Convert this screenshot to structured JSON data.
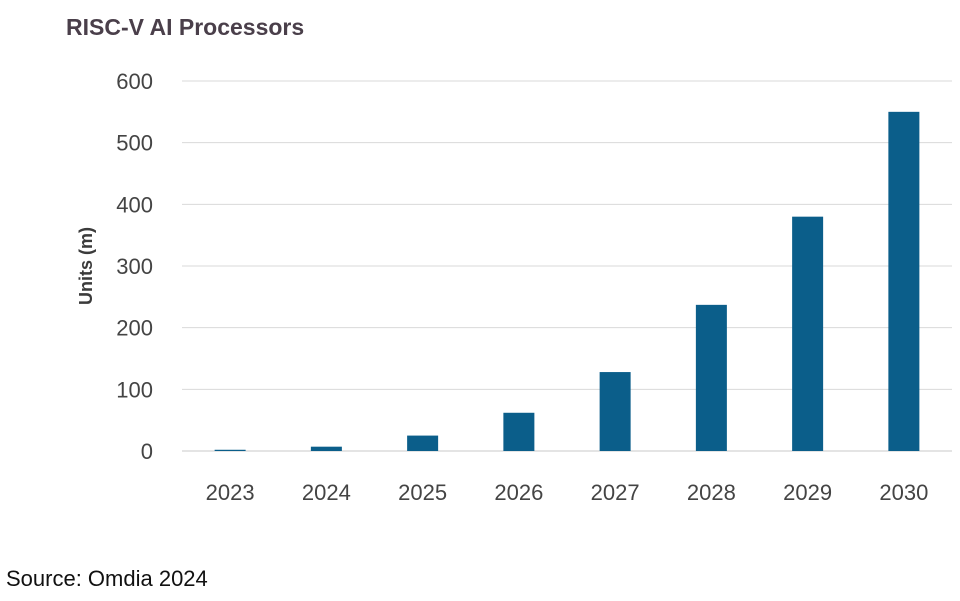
{
  "title": "RISC-V AI Processors",
  "source": "Source: Omdia 2024",
  "colors": {
    "bar": "#0b5e8a",
    "grid": "#d9d9d9",
    "axis": "#c8c8c8"
  },
  "chart_data": {
    "type": "bar",
    "title": "RISC-V AI Processors",
    "xlabel": "",
    "ylabel": "Units (m)",
    "categories": [
      "2023",
      "2024",
      "2025",
      "2026",
      "2027",
      "2028",
      "2029",
      "2030"
    ],
    "values": [
      2,
      7,
      25,
      62,
      128,
      237,
      380,
      550
    ],
    "ylim": [
      0,
      600
    ],
    "yticks": [
      0,
      100,
      200,
      300,
      400,
      500,
      600
    ],
    "grid": true,
    "legend": "none"
  }
}
